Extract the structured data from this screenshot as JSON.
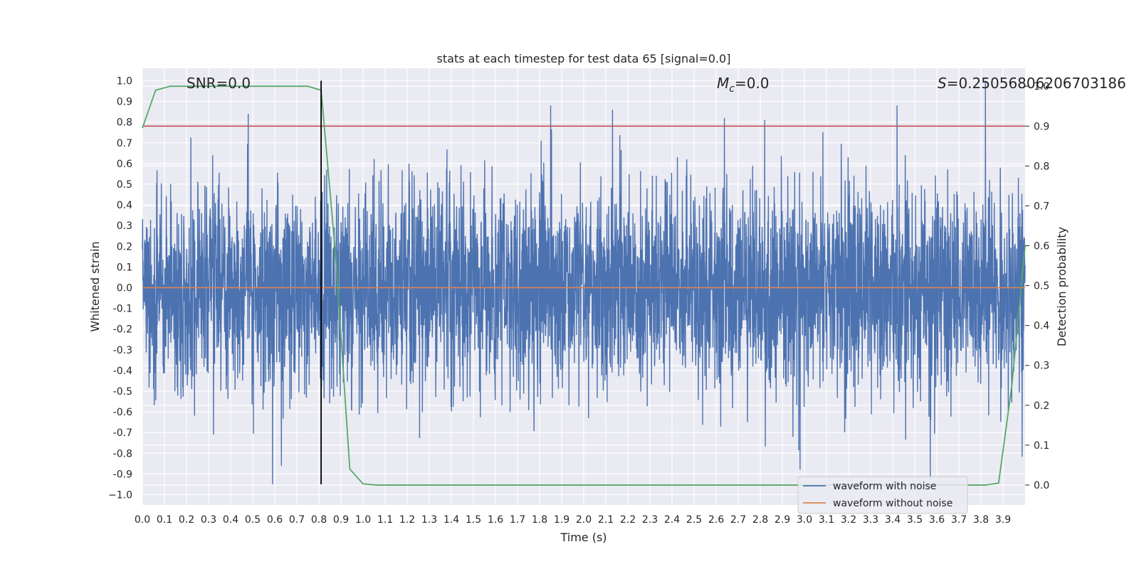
{
  "chart_data": {
    "type": "line",
    "title": "stats at each timestep for test data 65 [signal=0.0]",
    "xlabel": "Time (s)",
    "ylabel": "Whitened strain",
    "y2label": "Detection probability",
    "xlim": [
      0.0,
      4.0
    ],
    "ylim": [
      -1.05,
      1.06
    ],
    "y2lim": [
      -0.05,
      1.045
    ],
    "x_ticks": [
      "0.0",
      "0.1",
      "0.2",
      "0.3",
      "0.4",
      "0.5",
      "0.6",
      "0.7",
      "0.8",
      "0.9",
      "1.0",
      "1.1",
      "1.2",
      "1.3",
      "1.4",
      "1.5",
      "1.6",
      "1.7",
      "1.8",
      "1.9",
      "2.0",
      "2.1",
      "2.2",
      "2.3",
      "2.4",
      "2.5",
      "2.6",
      "2.7",
      "2.8",
      "2.9",
      "3.0",
      "3.1",
      "3.2",
      "3.3",
      "3.4",
      "3.5",
      "3.6",
      "3.7",
      "3.8",
      "3.9"
    ],
    "y_ticks": [
      "1.0",
      "0.9",
      "0.8",
      "0.7",
      "0.6",
      "0.5",
      "0.4",
      "0.3",
      "0.2",
      "0.1",
      "0.0",
      "-0.1",
      "-0.2",
      "-0.3",
      "-0.4",
      "-0.5",
      "-0.6",
      "-0.7",
      "-0.8",
      "-0.9",
      "−1.0"
    ],
    "y2_ticks": [
      "1.0",
      "0.9",
      "0.8",
      "0.7",
      "0.6",
      "0.5",
      "0.4",
      "0.3",
      "0.2",
      "0.1",
      "0.0"
    ],
    "annotations": {
      "snr": "SNR=0.0",
      "mc": "=0.0",
      "mc_symbol": "M",
      "mc_sub": "c",
      "s": "=0.25056806206703186",
      "s_symbol": "S"
    },
    "series": [
      {
        "name": "waveform with noise",
        "color": "#4c72b0",
        "kind": "noise",
        "samples": 4096,
        "typical_amplitude": 0.45,
        "peaks": [
          [
            0.48,
            0.84
          ],
          [
            1.85,
            0.88
          ],
          [
            2.13,
            0.86
          ],
          [
            2.82,
            0.81
          ],
          [
            3.42,
            0.88
          ],
          [
            3.82,
            1.0
          ],
          [
            0.59,
            -0.95
          ],
          [
            0.63,
            -0.86
          ],
          [
            2.98,
            -0.88
          ],
          [
            3.57,
            -0.93
          ]
        ]
      },
      {
        "name": "waveform without noise",
        "color": "#dd8452",
        "kind": "constant",
        "value": 0.0
      },
      {
        "name": "detection probability",
        "color": "#55a868",
        "axis": "right",
        "x": [
          0.0,
          0.06,
          0.125,
          0.25,
          0.375,
          0.5,
          0.625,
          0.75,
          0.81,
          0.875,
          0.94,
          1.0,
          1.06,
          1.25,
          1.5,
          2.0,
          2.5,
          3.0,
          3.5,
          3.75,
          3.82,
          3.88,
          3.94,
          4.0
        ],
        "y": [
          0.895,
          0.99,
          1.0,
          1.0,
          1.0,
          1.0,
          1.0,
          1.0,
          0.99,
          0.58,
          0.04,
          0.003,
          0.0,
          0.0,
          0.0,
          0.0,
          0.0,
          0.0,
          0.0,
          0.0,
          0.0,
          0.005,
          0.25,
          0.6
        ]
      }
    ],
    "hlines": [
      {
        "name": "threshold",
        "axis": "right",
        "value": 0.9,
        "color": "#c44e52"
      }
    ],
    "vlines": [
      {
        "name": "marker",
        "x": 0.81,
        "ymin": -0.95,
        "ymax": 1.0,
        "color": "#000000"
      }
    ],
    "legend": {
      "position": "lower-right",
      "entries": [
        {
          "label": "waveform with noise",
          "color": "#4c72b0"
        },
        {
          "label": "waveform without noise",
          "color": "#dd8452"
        }
      ]
    }
  }
}
